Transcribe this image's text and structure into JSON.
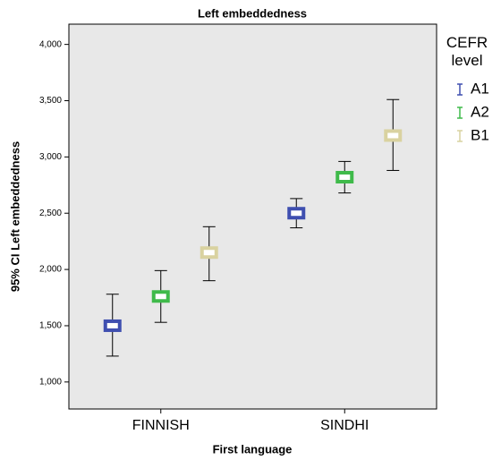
{
  "chart_data": {
    "type": "errorbar",
    "title": "Left embeddedness",
    "x_label": "First language",
    "y_label": "95% CI Left embeddedness",
    "legend_title": "CEFR level",
    "categories": [
      "FINNISH",
      "SINDHI"
    ],
    "series": [
      {
        "name": "A1",
        "color": "#3f4fb0",
        "values": [
          1.5,
          2.5
        ],
        "lower": [
          1.23,
          2.37
        ],
        "upper": [
          1.78,
          2.63
        ]
      },
      {
        "name": "A2",
        "color": "#3fba4a",
        "values": [
          1.76,
          2.82
        ],
        "lower": [
          1.53,
          2.68
        ],
        "upper": [
          1.99,
          2.96
        ]
      },
      {
        "name": "B1",
        "color": "#d9d2a0",
        "values": [
          2.15,
          3.19
        ],
        "lower": [
          1.9,
          2.88
        ],
        "upper": [
          2.38,
          3.51
        ]
      }
    ],
    "ylim": [
      0.76,
      4.18
    ],
    "yticks": [
      {
        "value": 1,
        "label": "1,000"
      },
      {
        "value": 1.5,
        "label": "1,500"
      },
      {
        "value": 2,
        "label": "2,000"
      },
      {
        "value": 2.5,
        "label": "2,500"
      },
      {
        "value": 3,
        "label": "3,000"
      },
      {
        "value": 3.5,
        "label": "3,500"
      },
      {
        "value": 4,
        "label": "4,000"
      }
    ],
    "grid": false,
    "legend": "right"
  }
}
